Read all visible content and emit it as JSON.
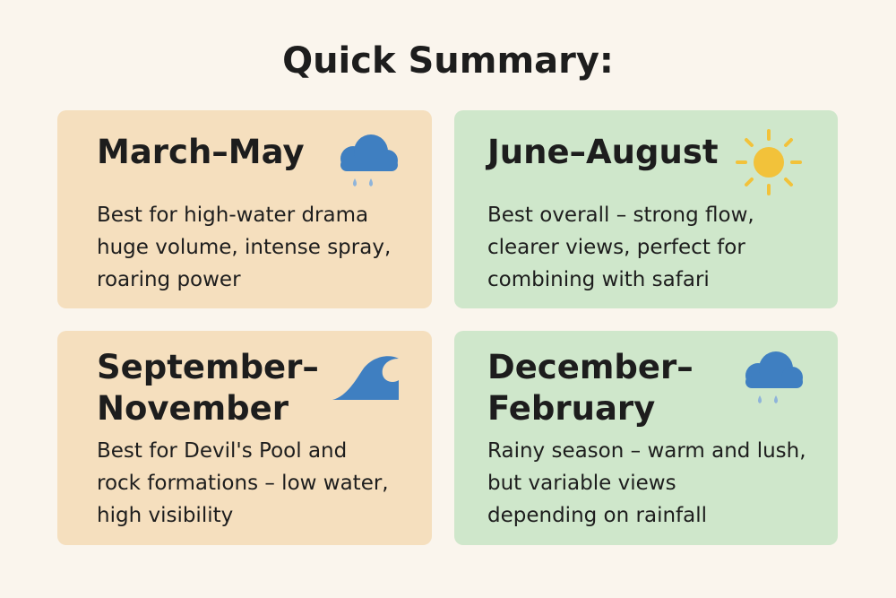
{
  "title": "Quick Summary:",
  "cards": [
    {
      "heading": [
        "March–May"
      ],
      "body": [
        "Best for high-water drama",
        "huge volume, intense spray,",
        "roaring power"
      ]
    },
    {
      "heading": [
        "June–August"
      ],
      "body": [
        "Best overall – strong flow,",
        "clearer views, perfect for",
        "combining with safari"
      ]
    },
    {
      "heading": [
        "September–",
        "November"
      ],
      "body": [
        "Best for Devil's Pool and",
        "rock formations – low water,",
        "high visibility"
      ]
    },
    {
      "heading": [
        "December–",
        "February"
      ],
      "body": [
        "Rainy season – warm and lush,",
        "but variable views",
        "depending on rainfall"
      ]
    }
  ]
}
